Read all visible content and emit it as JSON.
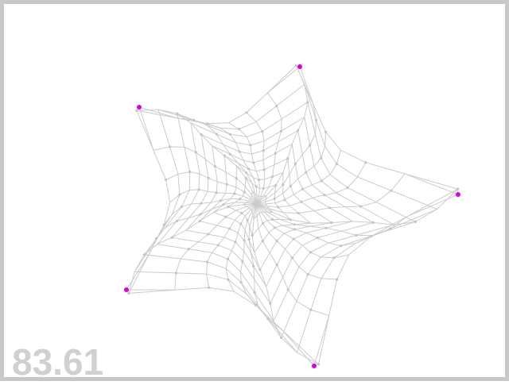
{
  "fps_counter": "83.61",
  "web": {
    "anchor_count": 5,
    "ring_count": 10,
    "colors": {
      "background": "#ffffff",
      "border": "#c8c8c8",
      "strand": "#cccccc",
      "node": "#c4c4c4",
      "anchor": "#dd00dd",
      "counter": "#d0d0d0"
    }
  }
}
